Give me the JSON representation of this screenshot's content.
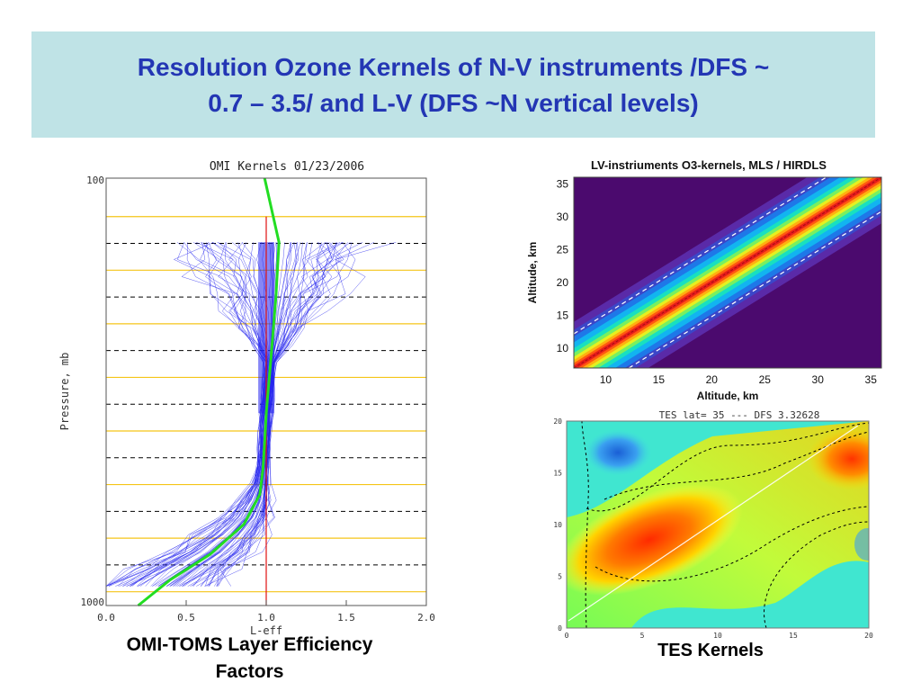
{
  "slide": {
    "title_line1": "Resolution Ozone Kernels of N-V  instruments /DFS ~",
    "title_line2": "0.7 – 3.5/ and L-V (DFS ~N vertical levels)",
    "caption_omi_line1": "OMI-TOMS Layer Efficiency",
    "caption_omi_line2": "Factors",
    "caption_tes": "TES Kernels"
  },
  "chart_data": [
    {
      "id": "omi",
      "type": "line",
      "title": "OMI Kernels 01/23/2006",
      "xlabel": "L-eff",
      "ylabel": "Pressure, mb",
      "xlim": [
        0.0,
        2.0
      ],
      "xticks": [
        "0.0",
        "0.5",
        "1.0",
        "1.5",
        "2.0"
      ],
      "ylim_labels": [
        "100",
        "1000"
      ],
      "reference_line_x": 1.0,
      "colors": {
        "mean": "#22dd22",
        "members": "#2222ee",
        "reference": "#e01010",
        "solid_grid": "#f5c518",
        "dashed_grid": "#000000"
      },
      "series": [
        {
          "values_x": [
            0.99,
            1.08,
            1.06,
            1.03,
            1.0,
            0.99,
            0.98,
            0.96,
            0.86,
            0.65,
            0.4,
            0.2
          ],
          "values_y_fraction": [
            0.0,
            0.15,
            0.28,
            0.42,
            0.55,
            0.62,
            0.68,
            0.74,
            0.81,
            0.88,
            0.94,
            1.0
          ]
        }
      ]
    },
    {
      "id": "lv",
      "type": "heatmap",
      "title": "LV-instriuments O3-kernels, MLS / HIRDLS",
      "xlabel": "Altitude, km",
      "ylabel": "Altitude, km",
      "xticks": [
        "10",
        "15",
        "20",
        "25",
        "30",
        "35"
      ],
      "yticks": [
        "10",
        "15",
        "20",
        "25",
        "30",
        "35"
      ],
      "xlim": [
        7,
        36
      ],
      "ylim": [
        7,
        36
      ]
    },
    {
      "id": "tes",
      "type": "heatmap",
      "title": "TES lat= 35 --- DFS 3.32628",
      "xticks": [
        "0",
        "5",
        "10",
        "15",
        "20"
      ],
      "yticks": [
        "0",
        "5",
        "10",
        "15",
        "20"
      ],
      "xlim": [
        0,
        20
      ],
      "ylim": [
        0,
        20
      ]
    }
  ]
}
